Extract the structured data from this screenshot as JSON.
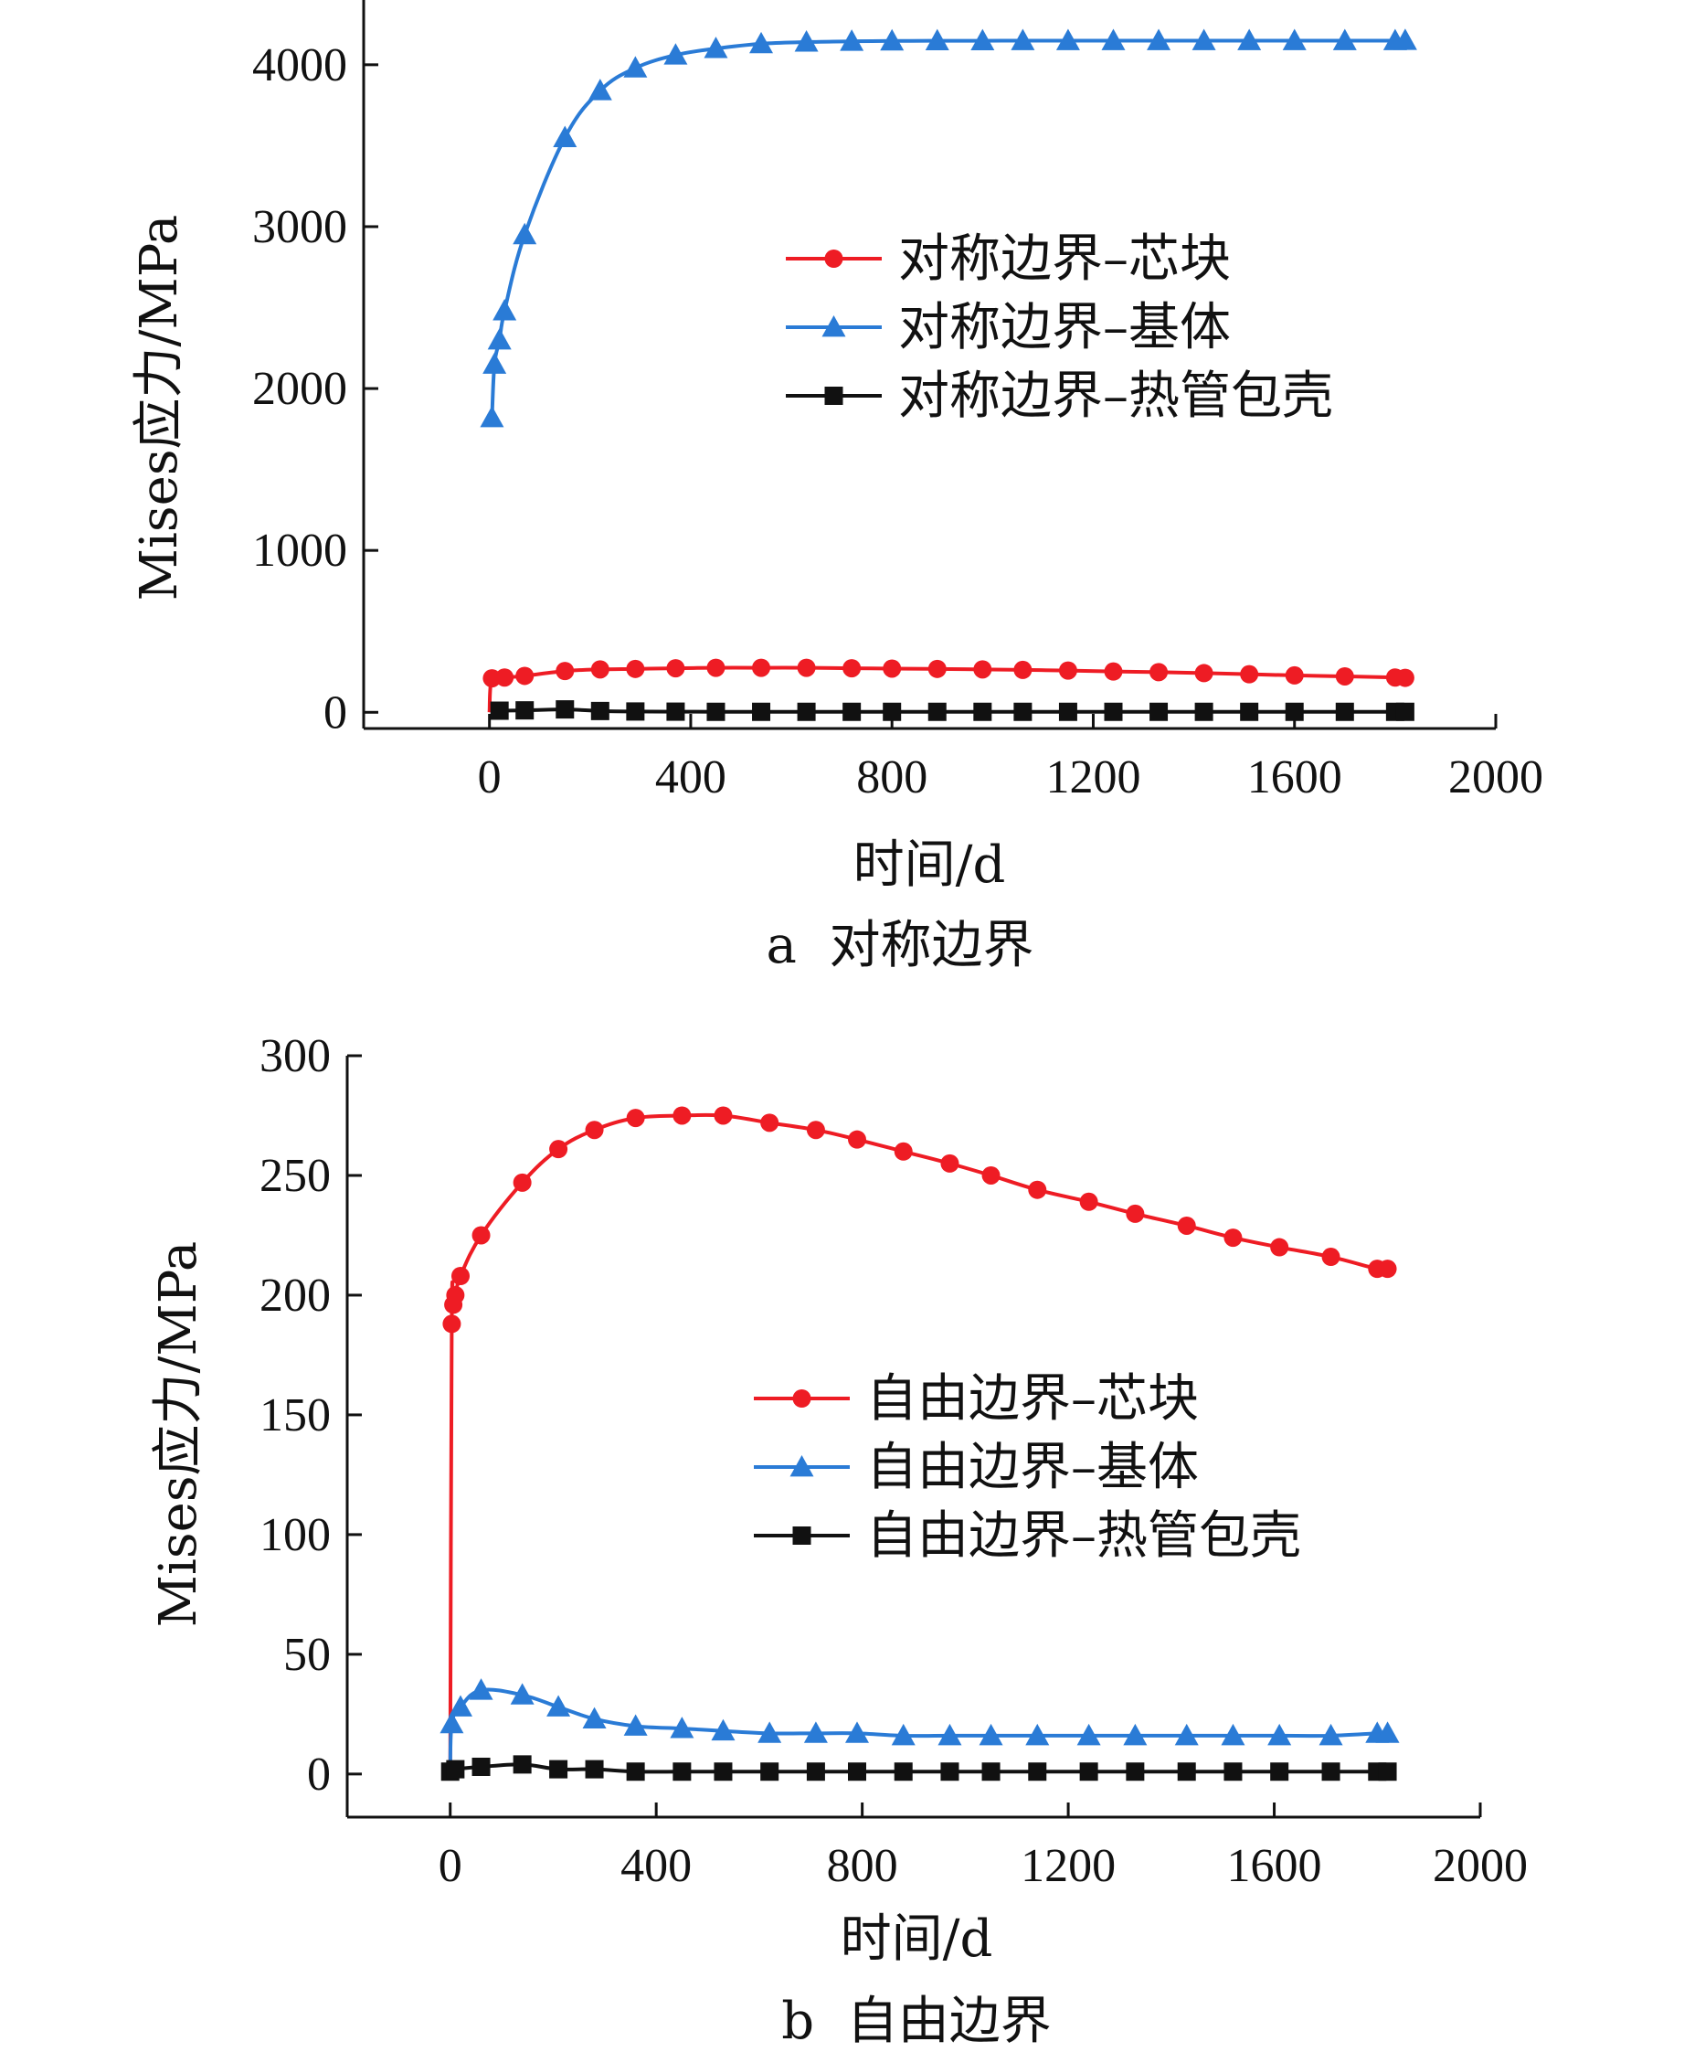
{
  "colors": {
    "red": "#ee1c24",
    "blue": "#2a7bd6",
    "black": "#111111"
  },
  "chart_data": [
    {
      "type": "line",
      "caption": "a  对称边界",
      "xlabel": "时间/d",
      "ylabel": "Mises应力/MPa",
      "xlim": [
        -250,
        2000
      ],
      "ylim": [
        -100,
        4400
      ],
      "xticks": [
        0,
        400,
        800,
        1200,
        1600,
        2000
      ],
      "yticks": [
        0,
        1000,
        2000,
        3000,
        4000
      ],
      "legend_position": "center-right",
      "series": [
        {
          "name": "对称边界–芯块",
          "color": "red",
          "marker": "circle",
          "x": [
            0,
            5,
            30,
            70,
            150,
            220,
            290,
            370,
            450,
            540,
            630,
            720,
            800,
            890,
            980,
            1060,
            1150,
            1240,
            1330,
            1420,
            1510,
            1600,
            1700,
            1800,
            1820
          ],
          "y": [
            0,
            210,
            215,
            225,
            255,
            265,
            268,
            272,
            275,
            275,
            275,
            272,
            270,
            268,
            265,
            262,
            258,
            252,
            248,
            242,
            235,
            228,
            222,
            215,
            213
          ]
        },
        {
          "name": "对称边界–基体",
          "color": "blue",
          "marker": "triangle",
          "x": [
            5,
            10,
            20,
            30,
            70,
            150,
            220,
            290,
            370,
            450,
            540,
            630,
            720,
            800,
            890,
            980,
            1060,
            1150,
            1240,
            1330,
            1420,
            1510,
            1600,
            1700,
            1800,
            1820
          ],
          "y": [
            1820,
            2150,
            2300,
            2480,
            2950,
            3550,
            3840,
            3980,
            4060,
            4100,
            4130,
            4140,
            4145,
            4147,
            4148,
            4148,
            4149,
            4149,
            4149,
            4149,
            4149,
            4149,
            4149,
            4149,
            4149,
            4150
          ]
        },
        {
          "name": "对称边界–热管包壳",
          "color": "black",
          "marker": "square",
          "x": [
            20,
            70,
            150,
            220,
            290,
            370,
            450,
            540,
            630,
            720,
            800,
            890,
            980,
            1060,
            1150,
            1240,
            1330,
            1420,
            1510,
            1600,
            1700,
            1800,
            1820
          ],
          "y": [
            10,
            12,
            18,
            8,
            5,
            4,
            3,
            3,
            3,
            3,
            3,
            3,
            3,
            3,
            3,
            3,
            3,
            3,
            3,
            3,
            3,
            3,
            3
          ]
        }
      ]
    },
    {
      "type": "line",
      "caption": "b  自由边界",
      "xlabel": "时间/d",
      "ylabel": "Mises应力/MPa",
      "xlim": [
        -200,
        2000
      ],
      "ylim": [
        -18,
        300
      ],
      "xticks": [
        0,
        400,
        800,
        1200,
        1600,
        2000
      ],
      "yticks": [
        0,
        50,
        100,
        150,
        200,
        250,
        300
      ],
      "legend_position": "center-right",
      "series": [
        {
          "name": "自由边界–芯块",
          "color": "red",
          "marker": "circle",
          "x": [
            0,
            3,
            6,
            10,
            20,
            60,
            140,
            210,
            280,
            360,
            450,
            530,
            620,
            710,
            790,
            880,
            970,
            1050,
            1140,
            1240,
            1330,
            1430,
            1520,
            1610,
            1710,
            1800,
            1820
          ],
          "y": [
            0,
            188,
            196,
            200,
            208,
            225,
            247,
            261,
            269,
            274,
            275,
            275,
            272,
            269,
            265,
            260,
            255,
            250,
            244,
            239,
            234,
            229,
            224,
            220,
            216,
            211,
            211
          ]
        },
        {
          "name": "自由边界–基体",
          "color": "blue",
          "marker": "triangle",
          "x": [
            0,
            3,
            20,
            60,
            140,
            210,
            280,
            360,
            450,
            530,
            620,
            710,
            790,
            880,
            970,
            1050,
            1140,
            1240,
            1330,
            1430,
            1520,
            1610,
            1710,
            1800,
            1820
          ],
          "y": [
            0,
            21,
            28,
            35,
            33,
            28,
            23,
            20,
            19,
            18,
            17,
            17,
            17,
            16,
            16,
            16,
            16,
            16,
            16,
            16,
            16,
            16,
            16,
            17,
            17
          ]
        },
        {
          "name": "自由边界–热管包壳",
          "color": "black",
          "marker": "square",
          "x": [
            0,
            10,
            60,
            140,
            210,
            280,
            360,
            450,
            530,
            620,
            710,
            790,
            880,
            970,
            1050,
            1140,
            1240,
            1330,
            1430,
            1520,
            1610,
            1710,
            1800,
            1820
          ],
          "y": [
            1,
            2,
            3,
            4,
            2,
            2,
            1,
            1,
            1,
            1,
            1,
            1,
            1,
            1,
            1,
            1,
            1,
            1,
            1,
            1,
            1,
            1,
            1,
            1
          ]
        }
      ]
    }
  ]
}
